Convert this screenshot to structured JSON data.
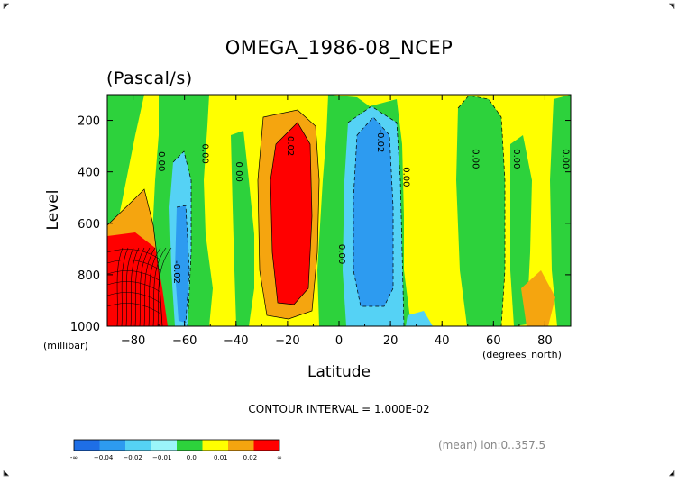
{
  "title": "OMEGA_1986-08_NCEP",
  "units": "(Pascal/s)",
  "chart_data": {
    "type": "heatmap",
    "variable": "OMEGA",
    "units_label": "(Pascal/s)",
    "xlabel": "Latitude",
    "x_units": "(degrees_north)",
    "ylabel": "Level",
    "y_units": "(millibar)",
    "xlim": [
      -90,
      90
    ],
    "ylim": [
      1000,
      100
    ],
    "x_ticks": [
      "-80",
      "-60",
      "-40",
      "-20",
      "0",
      "20",
      "40",
      "60",
      "80"
    ],
    "y_ticks": [
      "200",
      "400",
      "600",
      "800",
      "1000"
    ],
    "contour_interval": "CONTOUR INTERVAL = 1.000E-02",
    "contour_labels": [
      {
        "text": "0.00",
        "lat": -70,
        "level": 360
      },
      {
        "text": "0.00",
        "lat": -53,
        "level": 330
      },
      {
        "text": "0.00",
        "lat": -40,
        "level": 400
      },
      {
        "text": "0.02",
        "lat": -20,
        "level": 300
      },
      {
        "text": "-0.02",
        "lat": 15,
        "level": 280
      },
      {
        "text": "0.00",
        "lat": 25,
        "level": 420
      },
      {
        "text": "0.00",
        "lat": 0,
        "level": 720
      },
      {
        "text": "0.00",
        "lat": 52,
        "level": 350
      },
      {
        "text": "0.00",
        "lat": 68,
        "level": 350
      },
      {
        "text": "0.00",
        "lat": 87,
        "level": 350
      },
      {
        "text": "-0.02",
        "lat": -64,
        "level": 790
      }
    ],
    "regions": [
      {
        "name": "strong-ascent-south",
        "lat": [
          12,
          17
        ],
        "level": [
          200,
          900
        ],
        "value": "< -0.02"
      },
      {
        "name": "strong-descent-subtropics",
        "lat": [
          -22,
          -15
        ],
        "level": [
          250,
          900
        ],
        "value": "> 0.02"
      },
      {
        "name": "antarctic-descent",
        "lat": [
          -90,
          -72
        ],
        "level": [
          650,
          1000
        ],
        "value": "> 0.02"
      }
    ],
    "colorbar": {
      "labels": [
        "-∞",
        "−0.04",
        "−0.02",
        "−0.01",
        "0.0",
        "0.01",
        "0.02",
        "∞"
      ],
      "colors": [
        "#1e6ee6",
        "#2d9bf0",
        "#55d2f5",
        "#9bf5fa",
        "#2dd23c",
        "#ffff00",
        "#f5a50f",
        "#ff0000"
      ]
    }
  },
  "footer_right": "(mean) lon:0..357.5"
}
